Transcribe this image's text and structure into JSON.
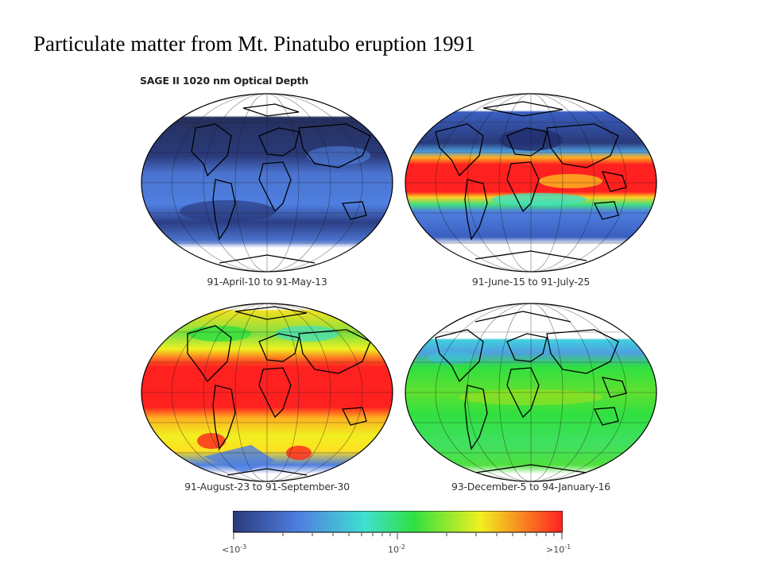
{
  "slide": {
    "title": "Particulate matter from Mt. Pinatubo eruption 1991"
  },
  "figure": {
    "title": "SAGE II 1020 nm Optical Depth",
    "maps": [
      {
        "caption": "91-April-10 to 91-May-13"
      },
      {
        "caption": "91-June-15 to 91-July-25"
      },
      {
        "caption": "91-August-23 to 91-September-30"
      },
      {
        "caption": "93-December-5 to 94-January-16"
      }
    ],
    "colorbar": {
      "min_base": "<10",
      "min_exp": "-3",
      "mid_base": "10",
      "mid_exp": "-2",
      "max_base": ">10",
      "max_exp": "-1",
      "colors": [
        "#2a3a7a",
        "#4f7fe0",
        "#3fe0d0",
        "#30e040",
        "#f0f020",
        "#ff2020"
      ]
    }
  }
}
